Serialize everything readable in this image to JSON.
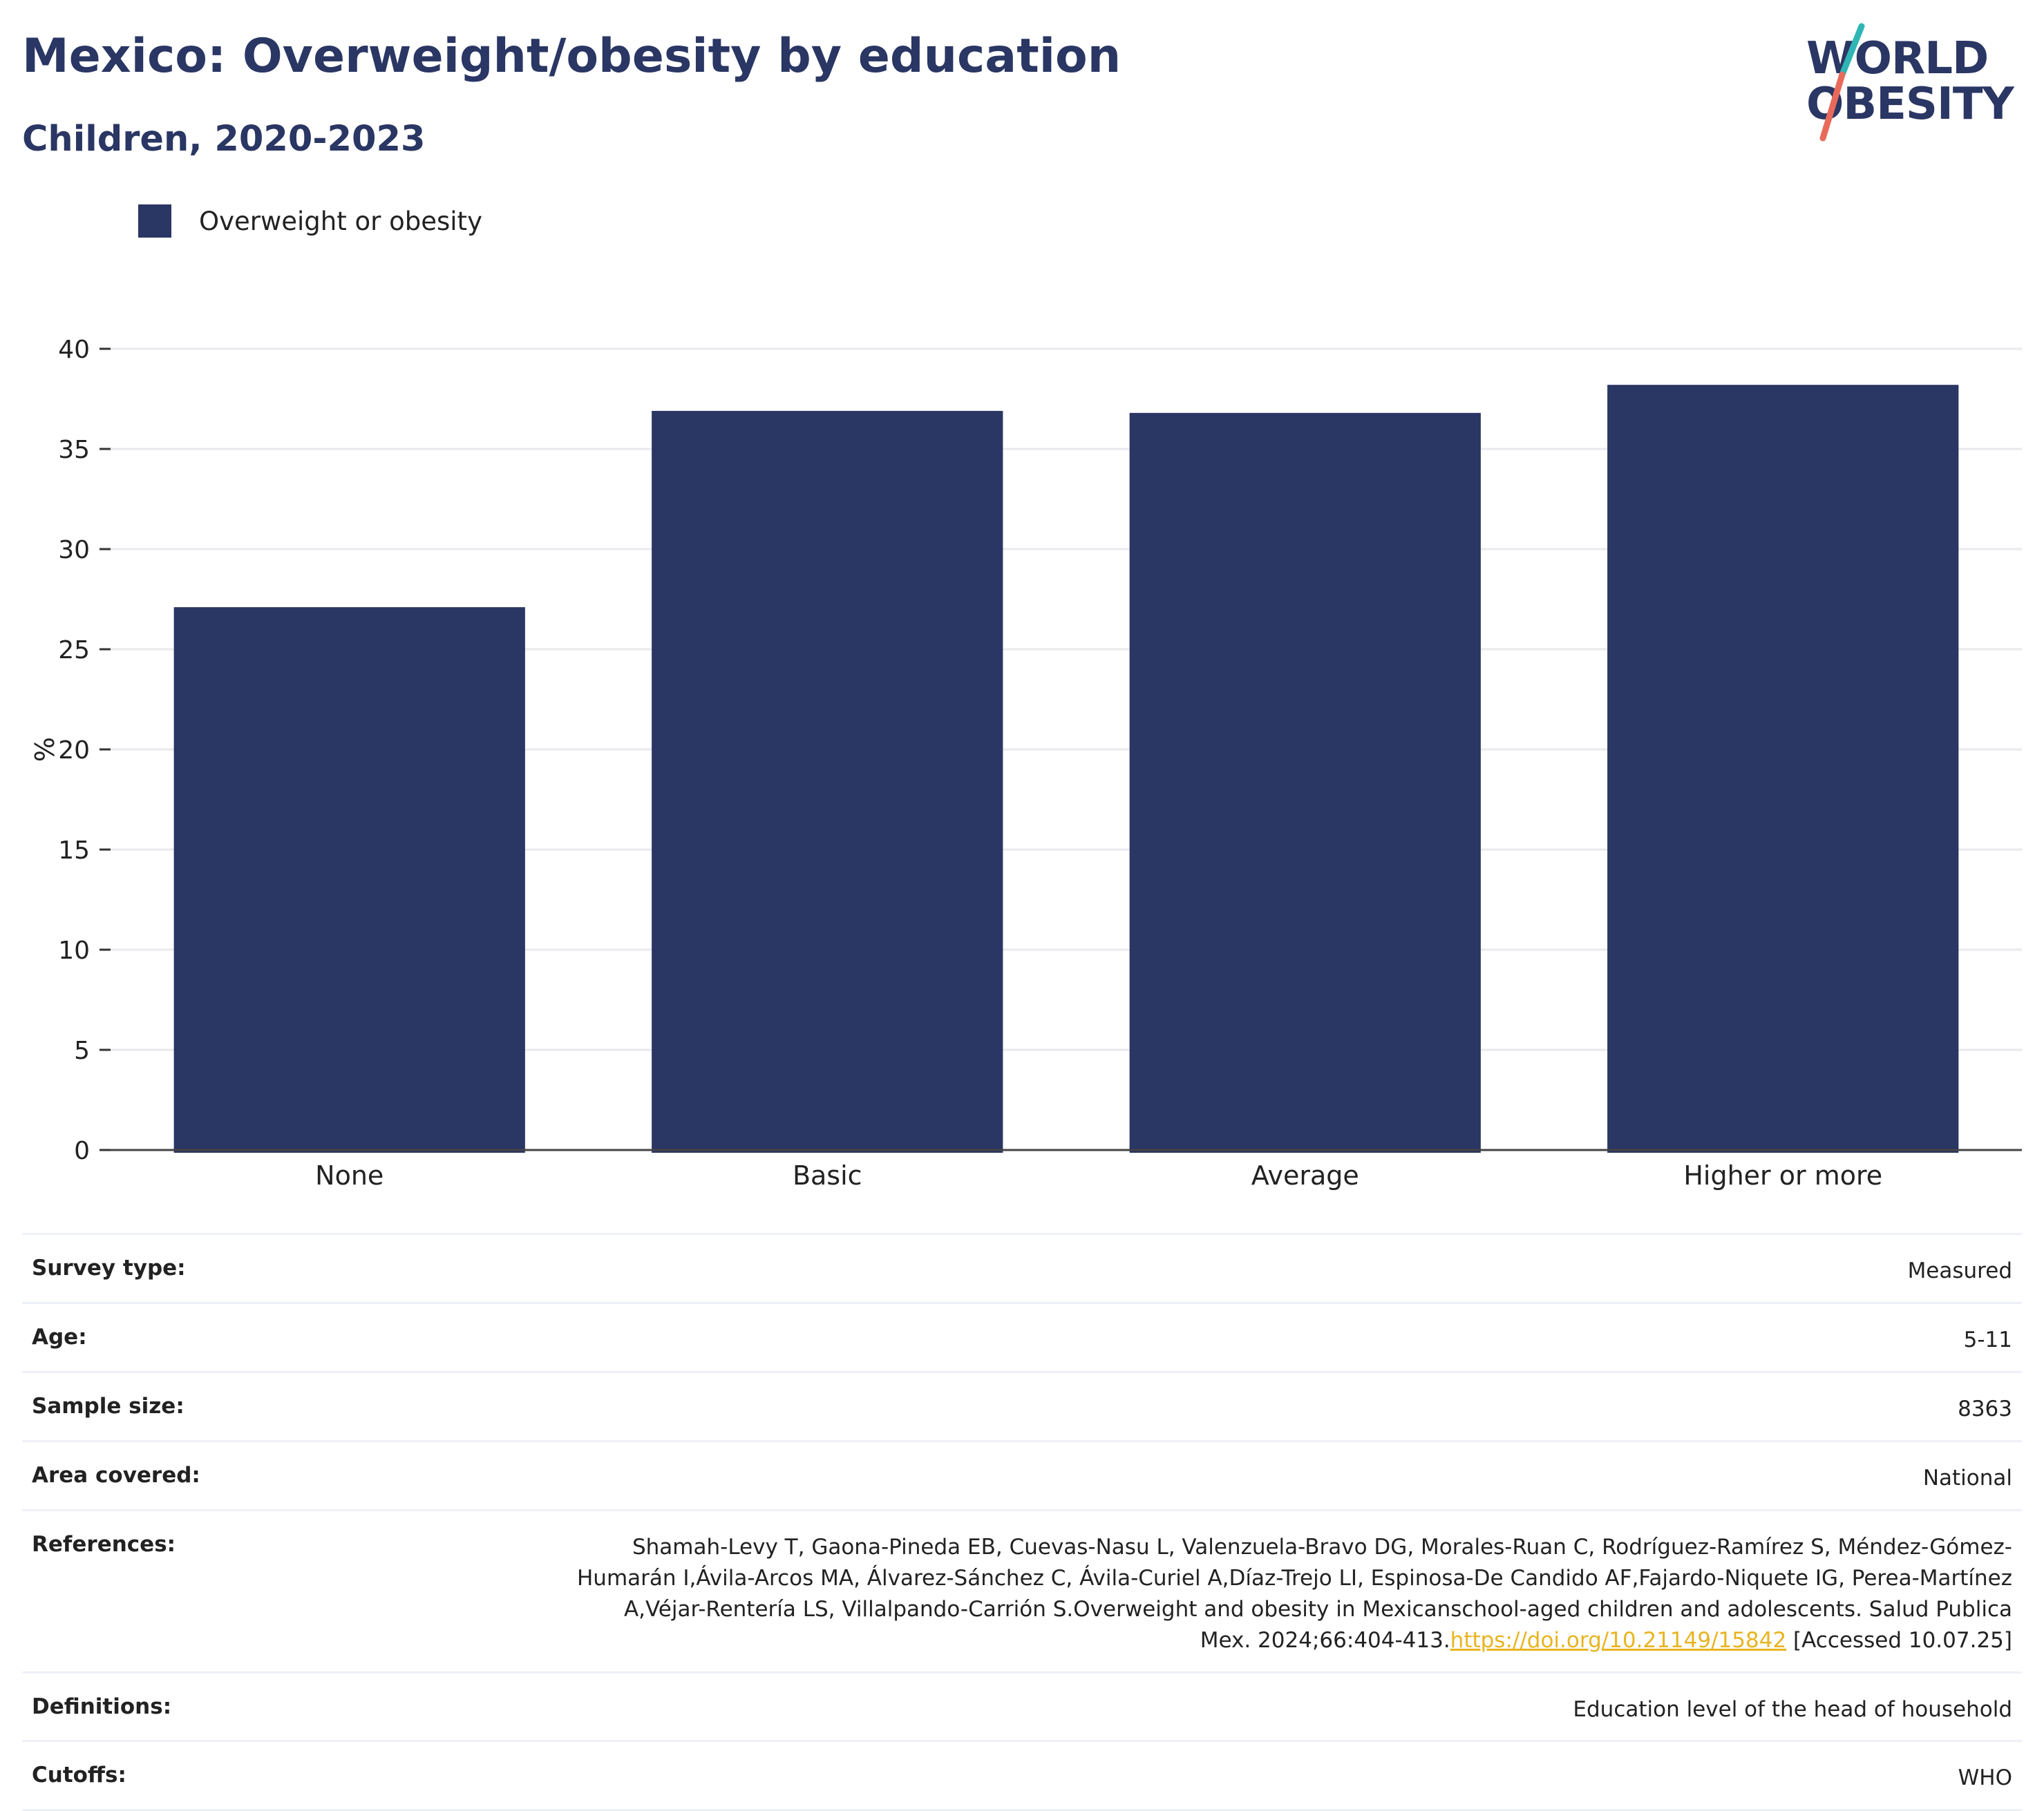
{
  "header": {
    "title": "Mexico: Overweight/obesity by education",
    "subtitle": "Children, 2020-2023"
  },
  "logo": {
    "line1": "WORLD",
    "line2": "OBESITY",
    "colors": {
      "text": "#2a3663",
      "slash_top": "#2fb5b5",
      "slash_bottom": "#e86a5a"
    }
  },
  "chart_data": {
    "type": "bar",
    "categories": [
      "None",
      "Basic",
      "Average",
      "Higher or more"
    ],
    "series": [
      {
        "name": "Overweight or obesity",
        "values": [
          27.1,
          36.9,
          36.8,
          38.2
        ],
        "color": "#2a3663"
      }
    ],
    "ylabel": "%",
    "ylim": [
      0,
      40
    ],
    "yticks": [
      0,
      5,
      10,
      15,
      20,
      25,
      30,
      35,
      40
    ],
    "grid": true,
    "legend_position": "top-left"
  },
  "metadata": {
    "rows": [
      {
        "label": "Survey type:",
        "value": "Measured"
      },
      {
        "label": "Age:",
        "value": "5-11"
      },
      {
        "label": "Sample size:",
        "value": "8363"
      },
      {
        "label": "Area covered:",
        "value": "National"
      }
    ],
    "references": {
      "label": "References:",
      "text": "Shamah-Levy T, Gaona-Pineda EB, Cuevas-Nasu L, Valenzuela-Bravo DG, Morales-Ruan C, Rodríguez-Ramírez S, Méndez-Gómez-Humarán I,Ávila-Arcos MA, Álvarez-Sánchez C, Ávila-Curiel A,Díaz-Trejo LI, Espinosa-De Candido AF,Fajardo-Niquete IG, Perea-Martínez A,Véjar-Rentería LS, Villalpando-Carrión S.Overweight and obesity in Mexicanschool-aged children and adolescents. Salud Publica Mex. 2024;66:404-413.",
      "link": "https://doi.org/10.21149/15842",
      "suffix": " [Accessed 10.07.25]"
    },
    "rows_after": [
      {
        "label": "Definitions:",
        "value": "Education level of the head of household"
      },
      {
        "label": "Cutoffs:",
        "value": "WHO"
      }
    ]
  }
}
